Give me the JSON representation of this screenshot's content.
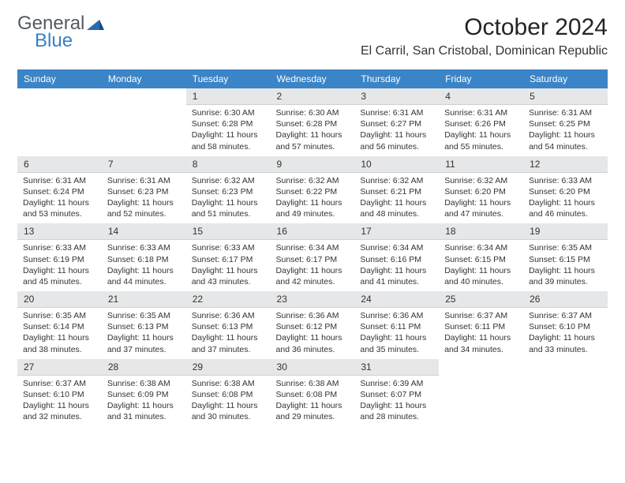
{
  "logo": {
    "text_general": "General",
    "text_blue": "Blue"
  },
  "title": "October 2024",
  "location": "El Carril, San Cristobal, Dominican Republic",
  "colors": {
    "header_bg": "#3a84c7",
    "header_text": "#ffffff",
    "daynum_bg": "#e6e7e8",
    "logo_gray": "#555a60",
    "logo_blue": "#3a7fc4"
  },
  "font": {
    "title_size": 30,
    "location_size": 16,
    "header_size": 12,
    "body_size": 10.5
  },
  "weekdays": [
    "Sunday",
    "Monday",
    "Tuesday",
    "Wednesday",
    "Thursday",
    "Friday",
    "Saturday"
  ],
  "weeks": [
    [
      null,
      null,
      {
        "n": "1",
        "sr": "6:30 AM",
        "ss": "6:28 PM",
        "dl": "11 hours and 58 minutes."
      },
      {
        "n": "2",
        "sr": "6:30 AM",
        "ss": "6:28 PM",
        "dl": "11 hours and 57 minutes."
      },
      {
        "n": "3",
        "sr": "6:31 AM",
        "ss": "6:27 PM",
        "dl": "11 hours and 56 minutes."
      },
      {
        "n": "4",
        "sr": "6:31 AM",
        "ss": "6:26 PM",
        "dl": "11 hours and 55 minutes."
      },
      {
        "n": "5",
        "sr": "6:31 AM",
        "ss": "6:25 PM",
        "dl": "11 hours and 54 minutes."
      }
    ],
    [
      {
        "n": "6",
        "sr": "6:31 AM",
        "ss": "6:24 PM",
        "dl": "11 hours and 53 minutes."
      },
      {
        "n": "7",
        "sr": "6:31 AM",
        "ss": "6:23 PM",
        "dl": "11 hours and 52 minutes."
      },
      {
        "n": "8",
        "sr": "6:32 AM",
        "ss": "6:23 PM",
        "dl": "11 hours and 51 minutes."
      },
      {
        "n": "9",
        "sr": "6:32 AM",
        "ss": "6:22 PM",
        "dl": "11 hours and 49 minutes."
      },
      {
        "n": "10",
        "sr": "6:32 AM",
        "ss": "6:21 PM",
        "dl": "11 hours and 48 minutes."
      },
      {
        "n": "11",
        "sr": "6:32 AM",
        "ss": "6:20 PM",
        "dl": "11 hours and 47 minutes."
      },
      {
        "n": "12",
        "sr": "6:33 AM",
        "ss": "6:20 PM",
        "dl": "11 hours and 46 minutes."
      }
    ],
    [
      {
        "n": "13",
        "sr": "6:33 AM",
        "ss": "6:19 PM",
        "dl": "11 hours and 45 minutes."
      },
      {
        "n": "14",
        "sr": "6:33 AM",
        "ss": "6:18 PM",
        "dl": "11 hours and 44 minutes."
      },
      {
        "n": "15",
        "sr": "6:33 AM",
        "ss": "6:17 PM",
        "dl": "11 hours and 43 minutes."
      },
      {
        "n": "16",
        "sr": "6:34 AM",
        "ss": "6:17 PM",
        "dl": "11 hours and 42 minutes."
      },
      {
        "n": "17",
        "sr": "6:34 AM",
        "ss": "6:16 PM",
        "dl": "11 hours and 41 minutes."
      },
      {
        "n": "18",
        "sr": "6:34 AM",
        "ss": "6:15 PM",
        "dl": "11 hours and 40 minutes."
      },
      {
        "n": "19",
        "sr": "6:35 AM",
        "ss": "6:15 PM",
        "dl": "11 hours and 39 minutes."
      }
    ],
    [
      {
        "n": "20",
        "sr": "6:35 AM",
        "ss": "6:14 PM",
        "dl": "11 hours and 38 minutes."
      },
      {
        "n": "21",
        "sr": "6:35 AM",
        "ss": "6:13 PM",
        "dl": "11 hours and 37 minutes."
      },
      {
        "n": "22",
        "sr": "6:36 AM",
        "ss": "6:13 PM",
        "dl": "11 hours and 37 minutes."
      },
      {
        "n": "23",
        "sr": "6:36 AM",
        "ss": "6:12 PM",
        "dl": "11 hours and 36 minutes."
      },
      {
        "n": "24",
        "sr": "6:36 AM",
        "ss": "6:11 PM",
        "dl": "11 hours and 35 minutes."
      },
      {
        "n": "25",
        "sr": "6:37 AM",
        "ss": "6:11 PM",
        "dl": "11 hours and 34 minutes."
      },
      {
        "n": "26",
        "sr": "6:37 AM",
        "ss": "6:10 PM",
        "dl": "11 hours and 33 minutes."
      }
    ],
    [
      {
        "n": "27",
        "sr": "6:37 AM",
        "ss": "6:10 PM",
        "dl": "11 hours and 32 minutes."
      },
      {
        "n": "28",
        "sr": "6:38 AM",
        "ss": "6:09 PM",
        "dl": "11 hours and 31 minutes."
      },
      {
        "n": "29",
        "sr": "6:38 AM",
        "ss": "6:08 PM",
        "dl": "11 hours and 30 minutes."
      },
      {
        "n": "30",
        "sr": "6:38 AM",
        "ss": "6:08 PM",
        "dl": "11 hours and 29 minutes."
      },
      {
        "n": "31",
        "sr": "6:39 AM",
        "ss": "6:07 PM",
        "dl": "11 hours and 28 minutes."
      },
      null,
      null
    ]
  ]
}
